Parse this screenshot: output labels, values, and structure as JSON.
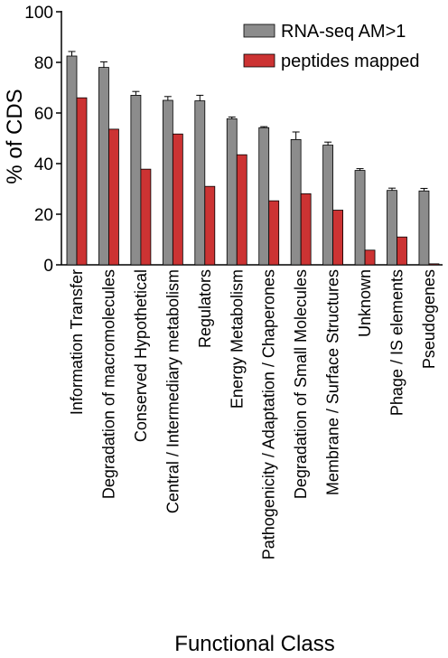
{
  "chart_data": {
    "type": "bar",
    "title": "",
    "xlabel": "Functional Class",
    "ylabel": "% of CDS",
    "ylim": [
      0,
      100
    ],
    "yticks": [
      0,
      20,
      40,
      60,
      80,
      100
    ],
    "grid": false,
    "legend_position": "top-right",
    "categories": [
      "Information Transfer",
      "Degradation of macromolecules",
      "Conserved Hypothetical",
      "Central / Intermediary metabolism",
      "Regulators",
      "Energy Metabolism",
      "Pathogenicity / Adaptation / Chaperones",
      "Degradation of Small Molecules",
      "Membrane / Surface Structures",
      "Unknown",
      "Phage / IS elements",
      "Pseudogenes"
    ],
    "series": [
      {
        "name": "RNA-seq AM>1",
        "color": "#8c8c8c",
        "values": [
          82.5,
          78,
          67,
          65,
          64.8,
          57.7,
          54.2,
          49.5,
          47.3,
          37.3,
          29.4,
          29.2
        ],
        "errors": [
          1.8,
          2.2,
          1.5,
          1.5,
          2.2,
          0.7,
          0.4,
          3.0,
          1.2,
          0.7,
          0.9,
          1.0
        ]
      },
      {
        "name": "peptides mapped",
        "color": "#cc3333",
        "values": [
          66,
          53.6,
          37.8,
          51.7,
          31,
          43.5,
          25.3,
          28.1,
          21.6,
          5.8,
          11,
          0.4
        ]
      }
    ]
  }
}
